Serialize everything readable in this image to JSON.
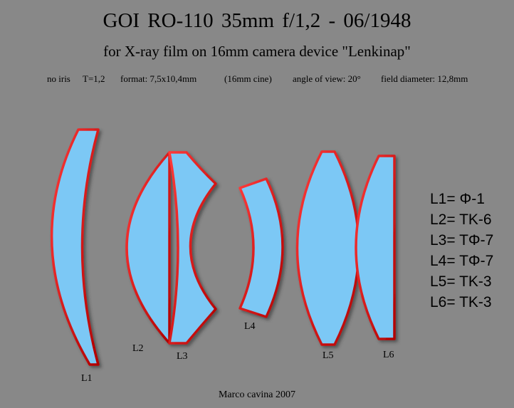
{
  "title": "GOI  RO-110  35mm  f/1,2 - 06/1948",
  "subtitle": "for X-ray film on 16mm camera device \"Lenkinap\"",
  "specs": {
    "iris": "no iris",
    "t_stop": "T=1,2",
    "format": "format: 7,5x10,4mm",
    "cine": "(16mm cine)",
    "angle": "angle of view: 20°",
    "field": "field diameter: 12,8mm"
  },
  "lens_labels": {
    "L1": "L1",
    "L2": "L2",
    "L3": "L3",
    "L4": "L4",
    "L5": "L5",
    "L6": "L6"
  },
  "glass_types": [
    "L1= Φ-1",
    "L2= TK-6",
    "L3= TΦ-7",
    "L4= TΦ-7",
    "L5= TK-3",
    "L6= TK-3"
  ],
  "credit": "Marco cavina 2007",
  "colors": {
    "background": "#888888",
    "glass_fill": "#7cc8f5",
    "glass_edge": "#e00000"
  }
}
